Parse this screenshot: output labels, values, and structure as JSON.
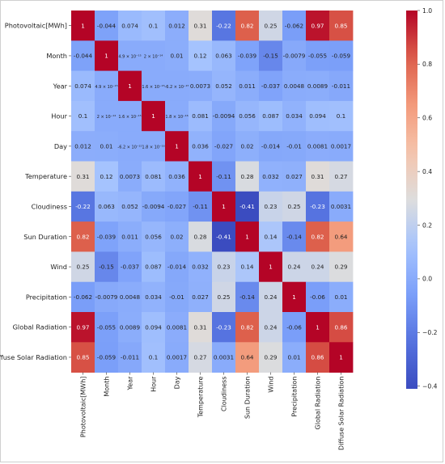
{
  "chart_data": {
    "type": "heatmap",
    "title": "",
    "xlabel": "",
    "ylabel": "",
    "labels": [
      "Photovoltaic[MWh]",
      "Month",
      "Year",
      "Hour",
      "Day",
      "Temperature",
      "Cloudiness",
      "Sun Duration",
      "Wind",
      "Precipitation",
      "Global Radiation",
      "Diffuse Solar Radiation"
    ],
    "values": [
      [
        1,
        -0.044,
        0.074,
        0.1,
        0.012,
        0.31,
        -0.22,
        0.82,
        0.25,
        -0.062,
        0.97,
        0.85
      ],
      [
        -0.044,
        1,
        4.9e-15,
        2e-14,
        0.01,
        0.12,
        0.063,
        -0.039,
        -0.15,
        -0.0079,
        -0.055,
        -0.059
      ],
      [
        0.074,
        4.9e-15,
        1,
        1.6e-15,
        -6.2e-15,
        0.0073,
        0.052,
        0.011,
        -0.037,
        0.0048,
        0.0089,
        -0.011
      ],
      [
        0.1,
        2e-14,
        1.6e-15,
        1,
        1.8e-16,
        0.081,
        -0.0094,
        0.056,
        0.087,
        0.034,
        0.094,
        0.1
      ],
      [
        0.012,
        0.01,
        -6.2e-15,
        1.8e-16,
        1,
        0.036,
        -0.027,
        0.02,
        -0.014,
        -0.01,
        0.0081,
        0.0017
      ],
      [
        0.31,
        0.12,
        0.0073,
        0.081,
        0.036,
        1,
        -0.11,
        0.28,
        0.032,
        0.027,
        0.31,
        0.27
      ],
      [
        -0.22,
        0.063,
        0.052,
        -0.0094,
        -0.027,
        -0.11,
        1,
        -0.41,
        0.23,
        0.25,
        -0.23,
        0.0031
      ],
      [
        0.82,
        -0.039,
        0.011,
        0.056,
        0.02,
        0.28,
        -0.41,
        1,
        0.14,
        -0.14,
        0.82,
        0.64
      ],
      [
        0.25,
        -0.15,
        -0.037,
        0.087,
        -0.014,
        0.032,
        0.23,
        0.14,
        1,
        0.24,
        0.24,
        0.29
      ],
      [
        -0.062,
        -0.0079,
        0.0048,
        0.034,
        -0.01,
        0.027,
        0.25,
        -0.14,
        0.24,
        1,
        -0.06,
        0.01
      ],
      [
        0.97,
        -0.055,
        0.0089,
        0.094,
        0.0081,
        0.31,
        -0.23,
        0.82,
        0.24,
        -0.06,
        1,
        0.86
      ],
      [
        0.85,
        -0.059,
        -0.011,
        0.1,
        0.0017,
        0.27,
        0.0031,
        0.64,
        0.29,
        0.01,
        0.86,
        1
      ]
    ],
    "annotations": [
      [
        "1",
        "-0.044",
        "0.074",
        "0.1",
        "0.012",
        "0.31",
        "-0.22",
        "0.82",
        "0.25",
        "-0.062",
        "0.97",
        "0.85"
      ],
      [
        "-0.044",
        "1",
        "4.9 × 10⁻¹⁵",
        "2 × 10⁻¹⁴",
        "0.01",
        "0.12",
        "0.063",
        "-0.039",
        "-0.15",
        "-0.0079",
        "-0.055",
        "-0.059"
      ],
      [
        "0.074",
        "4.9 × 10⁻¹⁵",
        "1",
        "1.6 × 10⁻¹⁵",
        "-6.2 × 10⁻¹⁵",
        "0.0073",
        "0.052",
        "0.011",
        "-0.037",
        "0.0048",
        "0.0089",
        "-0.011"
      ],
      [
        "0.1",
        "2 × 10⁻¹⁴",
        "1.6 × 10⁻¹⁵",
        "1",
        "1.8 × 10⁻¹⁶",
        "0.081",
        "-0.0094",
        "0.056",
        "0.087",
        "0.034",
        "0.094",
        "0.1"
      ],
      [
        "0.012",
        "0.01",
        "-6.2 × 10⁻¹⁵",
        "1.8 × 10⁻¹⁶",
        "1",
        "0.036",
        "-0.027",
        "0.02",
        "-0.014",
        "-0.01",
        "0.0081",
        "0.0017"
      ],
      [
        "0.31",
        "0.12",
        "0.0073",
        "0.081",
        "0.036",
        "1",
        "-0.11",
        "0.28",
        "0.032",
        "0.027",
        "0.31",
        "0.27"
      ],
      [
        "-0.22",
        "0.063",
        "0.052",
        "-0.0094",
        "-0.027",
        "-0.11",
        "1",
        "-0.41",
        "0.23",
        "0.25",
        "-0.23",
        "0.0031"
      ],
      [
        "0.82",
        "-0.039",
        "0.011",
        "0.056",
        "0.02",
        "0.28",
        "-0.41",
        "1",
        "0.14",
        "-0.14",
        "0.82",
        "0.64"
      ],
      [
        "0.25",
        "-0.15",
        "-0.037",
        "0.087",
        "-0.014",
        "0.032",
        "0.23",
        "0.14",
        "1",
        "0.24",
        "0.24",
        "0.29"
      ],
      [
        "-0.062",
        "-0.0079",
        "0.0048",
        "0.034",
        "-0.01",
        "0.027",
        "0.25",
        "-0.14",
        "0.24",
        "1",
        "-0.06",
        "0.01"
      ],
      [
        "0.97",
        "-0.055",
        "0.0089",
        "0.094",
        "0.0081",
        "0.31",
        "-0.23",
        "0.82",
        "0.24",
        "-0.06",
        "1",
        "0.86"
      ],
      [
        "0.85",
        "-0.059",
        "-0.011",
        "0.1",
        "0.0017",
        "0.27",
        "0.0031",
        "0.64",
        "0.29",
        "0.01",
        "0.86",
        "1"
      ]
    ],
    "colorscale": {
      "name": "coolwarm",
      "vmin": -0.41,
      "vmax": 1,
      "low_color": "#3b4cc0",
      "mid_color": "#dddddd",
      "high_color": "#b40426"
    },
    "colorbar": {
      "ticks": [
        1.0,
        0.8,
        0.6,
        0.4,
        0.2,
        0.0,
        -0.2,
        -0.4
      ],
      "tick_labels": [
        "1.0",
        "0.8",
        "0.6",
        "0.4",
        "0.2",
        "0.0",
        "−0.2",
        "−0.4"
      ]
    },
    "grid": false,
    "legend": "colorbar-right"
  }
}
